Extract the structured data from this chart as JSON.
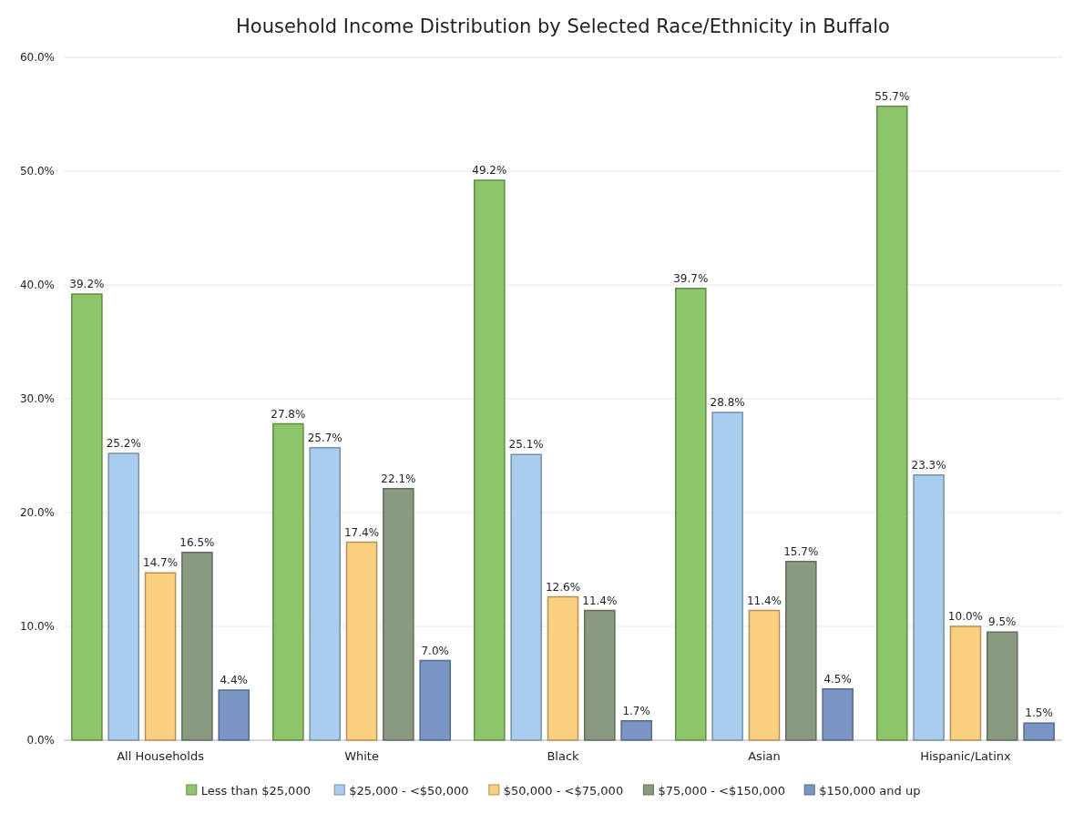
{
  "chart_data": {
    "type": "bar",
    "title": "Household Income Distribution by Selected Race/Ethnicity in Buffalo",
    "categories": [
      "All Households",
      "White",
      "Black",
      "Asian",
      "Hispanic/Latinx"
    ],
    "series": [
      {
        "name": "Less than $25,000",
        "color": "#8cc56a",
        "values": [
          39.2,
          27.8,
          49.2,
          39.7,
          55.7
        ],
        "value_labels": [
          "39.2%",
          "27.8%",
          "49.2%",
          "39.7%",
          "55.7%"
        ]
      },
      {
        "name": "$25,000 - <$50,000",
        "color": "#a9cdef",
        "values": [
          25.2,
          25.7,
          25.1,
          28.8,
          23.3
        ],
        "value_labels": [
          "25.2%",
          "25.7%",
          "25.1%",
          "28.8%",
          "23.3%"
        ]
      },
      {
        "name": "$50,000 - <$75,000",
        "color": "#fbcf80",
        "values": [
          14.7,
          17.4,
          12.6,
          11.4,
          10.0
        ],
        "value_labels": [
          "14.7%",
          "17.4%",
          "12.6%",
          "11.4%",
          "10.0%"
        ]
      },
      {
        "name": "$75,000 - <$150,000",
        "color": "#8a9a80",
        "values": [
          16.5,
          22.1,
          11.4,
          15.7,
          9.5
        ],
        "value_labels": [
          "16.5%",
          "22.1%",
          "11.4%",
          "15.7%",
          "9.5%"
        ]
      },
      {
        "name": "$150,000 and up",
        "color": "#7a96c4",
        "values": [
          4.4,
          7.0,
          1.7,
          4.5,
          1.5
        ],
        "value_labels": [
          "4.4%",
          "7.0%",
          "1.7%",
          "4.5%",
          "1.5%"
        ]
      }
    ],
    "ylim": [
      0,
      60
    ],
    "yticks": [
      {
        "value": 0,
        "label": "0.0%"
      },
      {
        "value": 10,
        "label": "10.0%"
      },
      {
        "value": 20,
        "label": "20.0%"
      },
      {
        "value": 30,
        "label": "30.0%"
      },
      {
        "value": 40,
        "label": "40.0%"
      },
      {
        "value": 50,
        "label": "50.0%"
      },
      {
        "value": 60,
        "label": "60.0%"
      }
    ],
    "grid": "y",
    "legend": "bottom"
  }
}
